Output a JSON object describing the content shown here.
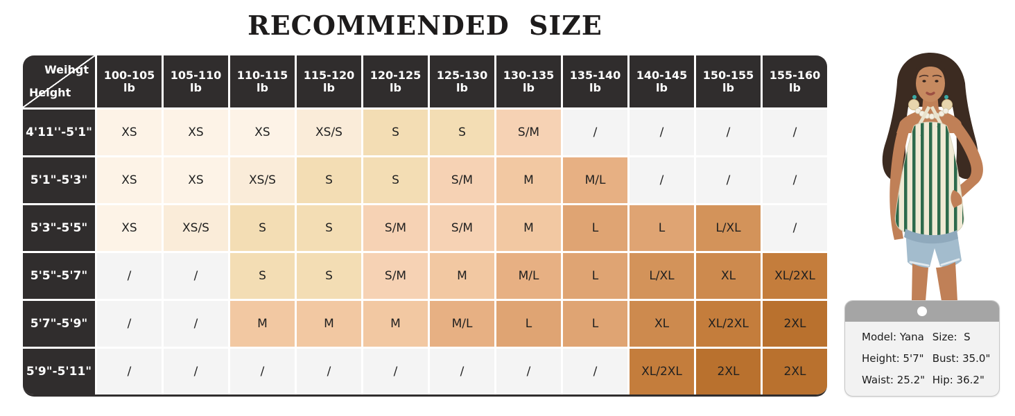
{
  "title": "RECOMMENDED SIZE",
  "chart_data": {
    "type": "table",
    "title": "RECOMMENDED SIZE",
    "corner": {
      "top_right": "Weihgt",
      "bottom_left": "Height"
    },
    "columns": [
      "100-105 lb",
      "105-110 lb",
      "110-115 lb",
      "115-120 lb",
      "120-125 lb",
      "125-130 lb",
      "130-135 lb",
      "135-140 lb",
      "140-145 lb",
      "150-155 lb",
      "155-160 lb"
    ],
    "rows": [
      {
        "height": "4'11''-5'1\"",
        "sizes": [
          "XS",
          "XS",
          "XS",
          "XS/S",
          "S",
          "S",
          "S/M",
          "/",
          "/",
          "/",
          "/"
        ]
      },
      {
        "height": "5'1\"-5'3\"",
        "sizes": [
          "XS",
          "XS",
          "XS/S",
          "S",
          "S",
          "S/M",
          "M",
          "M/L",
          "/",
          "/",
          "/"
        ]
      },
      {
        "height": "5'3\"-5'5\"",
        "sizes": [
          "XS",
          "XS/S",
          "S",
          "S",
          "S/M",
          "S/M",
          "M",
          "L",
          "L",
          "L/XL",
          "/"
        ]
      },
      {
        "height": "5'5\"-5'7\"",
        "sizes": [
          "/",
          "/",
          "S",
          "S",
          "S/M",
          "M",
          "M/L",
          "L",
          "L/XL",
          "XL",
          "XL/2XL"
        ]
      },
      {
        "height": "5'7\"-5'9\"",
        "sizes": [
          "/",
          "/",
          "M",
          "M",
          "M",
          "M/L",
          "L",
          "L",
          "XL",
          "XL/2XL",
          "2XL"
        ]
      },
      {
        "height": "5'9\"-5'11\"",
        "sizes": [
          "/",
          "/",
          "/",
          "/",
          "/",
          "/",
          "/",
          "/",
          "XL/2XL",
          "2XL",
          "2XL"
        ]
      }
    ],
    "empty_marker": "/"
  },
  "style": {
    "header_bg": "#302d2d",
    "header_text": "#ffffff",
    "cell_text": "#1f1f1f",
    "grid_line": "#ffffff",
    "empty_cell_bg": "#f4f4f4",
    "size_colors": {
      "XS": "#fdf3e7",
      "XS/S": "#faecd9",
      "S": "#f3ddb4",
      "S/M": "#f6d2b4",
      "M": "#f2c8a2",
      "M/L": "#e7b083",
      "L": "#dfa473",
      "L/XL": "#d3935a",
      "XL": "#cd8a4e",
      "XL/2XL": "#c47d3c",
      "2XL": "#b9712e"
    }
  },
  "model_card": {
    "rows": [
      [
        "Model: Yana",
        "Size:  S"
      ],
      [
        "Height: 5'7\"",
        "Bust: 35.0\""
      ],
      [
        "Waist: 25.2\"",
        "Hip: 36.2\""
      ]
    ]
  },
  "model_photo": {
    "alt": "Model wearing green and white striped halter tank top and denim shorts",
    "stripe_green": "#2d6a4c",
    "stripe_cream": "#efe9d4"
  }
}
